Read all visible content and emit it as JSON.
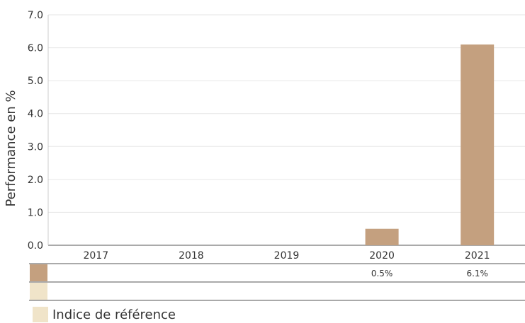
{
  "colors": {
    "fund": "#c4a07f",
    "benchmark": "#f0e4c9",
    "grid": "#e6e6e6",
    "axis": "#555555"
  },
  "chart_data": {
    "type": "bar",
    "categories": [
      "2017",
      "2018",
      "2019",
      "2020",
      "2021"
    ],
    "series": [
      {
        "values": [
          null,
          null,
          null,
          0.5,
          6.1
        ]
      },
      {
        "name": "Indice de référence",
        "values": [
          null,
          null,
          null,
          null,
          null
        ]
      }
    ],
    "ylabel": "Performance en %",
    "ylim": [
      0,
      7
    ],
    "yticks": [
      "0.0",
      "1.0",
      "2.0",
      "3.0",
      "4.0",
      "5.0",
      "6.0",
      "7.0"
    ],
    "grid": true,
    "table": {
      "rows": [
        [
          "",
          "",
          "",
          "0.5%",
          "6.1%"
        ],
        [
          "",
          "",
          "",
          "",
          ""
        ]
      ]
    },
    "legend": {
      "position": "bottom-left",
      "label": "Indice de référence"
    }
  }
}
